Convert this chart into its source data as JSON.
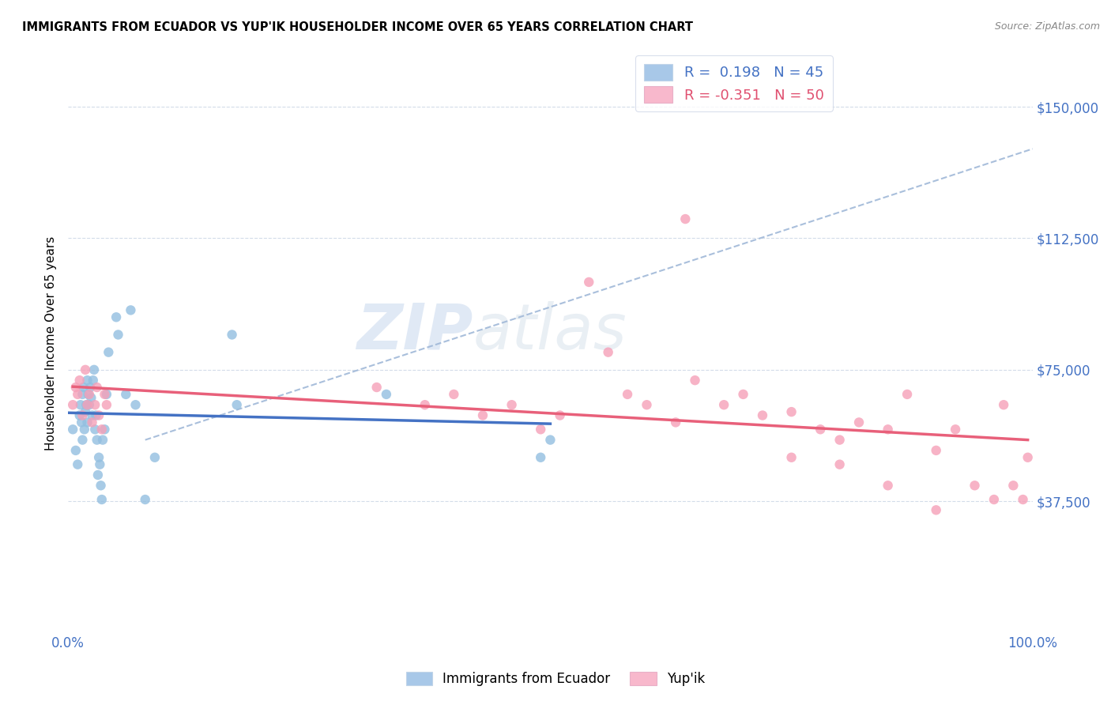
{
  "title": "IMMIGRANTS FROM ECUADOR VS YUP'IK HOUSEHOLDER INCOME OVER 65 YEARS CORRELATION CHART",
  "source": "Source: ZipAtlas.com",
  "ylabel": "Householder Income Over 65 years",
  "y_tick_labels": [
    "$37,500",
    "$75,000",
    "$112,500",
    "$150,000"
  ],
  "y_tick_values": [
    37500,
    75000,
    112500,
    150000
  ],
  "ylim": [
    0,
    165000
  ],
  "xlim": [
    0,
    1.0
  ],
  "watermark_zip": "ZIP",
  "watermark_atlas": "atlas",
  "ecuador_color": "#93bfe0",
  "yupik_color": "#f5a0b8",
  "ecuador_line_color": "#4472c4",
  "yupik_line_color": "#e8607a",
  "dashed_line_color": "#a0b8d8",
  "legend_blue_patch": "#a8c8e8",
  "legend_pink_patch": "#f8b8cc",
  "legend_text_blue": "R =  0.198   N = 45",
  "legend_text_pink": "R = -0.351   N = 50",
  "legend_color_blue": "#4472c4",
  "legend_color_pink": "#e05070",
  "ecuador_scatter_x": [
    0.005,
    0.008,
    0.01,
    0.012,
    0.013,
    0.014,
    0.015,
    0.015,
    0.016,
    0.017,
    0.018,
    0.019,
    0.02,
    0.02,
    0.021,
    0.022,
    0.023,
    0.024,
    0.025,
    0.026,
    0.027,
    0.028,
    0.029,
    0.03,
    0.031,
    0.032,
    0.033,
    0.034,
    0.035,
    0.036,
    0.038,
    0.04,
    0.042,
    0.05,
    0.052,
    0.06,
    0.065,
    0.07,
    0.08,
    0.09,
    0.17,
    0.175,
    0.33,
    0.49,
    0.5
  ],
  "ecuador_scatter_y": [
    58000,
    52000,
    48000,
    62000,
    65000,
    60000,
    55000,
    68000,
    70000,
    58000,
    63000,
    65000,
    60000,
    72000,
    68000,
    65000,
    70000,
    67000,
    62000,
    72000,
    75000,
    58000,
    62000,
    55000,
    45000,
    50000,
    48000,
    42000,
    38000,
    55000,
    58000,
    68000,
    80000,
    90000,
    85000,
    68000,
    92000,
    65000,
    38000,
    50000,
    85000,
    65000,
    68000,
    50000,
    55000
  ],
  "yupik_scatter_x": [
    0.005,
    0.008,
    0.01,
    0.012,
    0.015,
    0.018,
    0.02,
    0.022,
    0.025,
    0.028,
    0.03,
    0.032,
    0.035,
    0.038,
    0.04,
    0.32,
    0.37,
    0.4,
    0.43,
    0.46,
    0.49,
    0.51,
    0.54,
    0.56,
    0.58,
    0.6,
    0.63,
    0.65,
    0.68,
    0.7,
    0.72,
    0.75,
    0.78,
    0.8,
    0.82,
    0.85,
    0.87,
    0.9,
    0.92,
    0.94,
    0.96,
    0.97,
    0.98,
    0.99,
    0.995,
    0.64,
    0.75,
    0.8,
    0.85,
    0.9
  ],
  "yupik_scatter_y": [
    65000,
    70000,
    68000,
    72000,
    62000,
    75000,
    65000,
    68000,
    60000,
    65000,
    70000,
    62000,
    58000,
    68000,
    65000,
    70000,
    65000,
    68000,
    62000,
    65000,
    58000,
    62000,
    100000,
    80000,
    68000,
    65000,
    60000,
    72000,
    65000,
    68000,
    62000,
    63000,
    58000,
    55000,
    60000,
    58000,
    68000,
    52000,
    58000,
    42000,
    38000,
    65000,
    42000,
    38000,
    50000,
    118000,
    50000,
    48000,
    42000,
    35000
  ]
}
